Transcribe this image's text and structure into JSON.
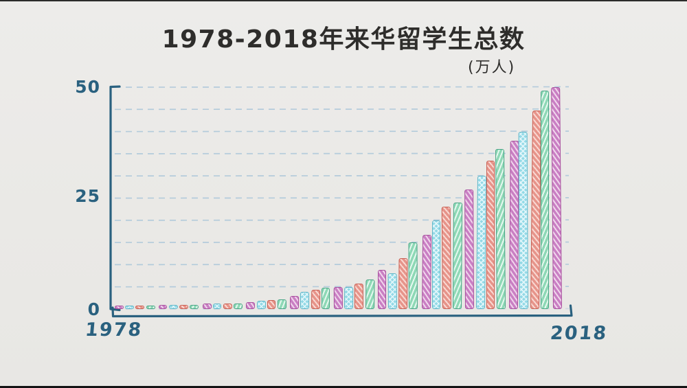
{
  "window": {
    "top_bar_color": "#2b2b2b",
    "bottom_bar_color": "#141414",
    "background": "#eae9e6"
  },
  "chart": {
    "title": "1978-2018年来华留学生总数",
    "unit_label": "(万人)",
    "title_color": "#2e2d2b",
    "y_axis_ticks": [
      "50",
      "25",
      "0"
    ],
    "x_axis_labels": {
      "start": "1978",
      "end": "2018"
    },
    "axis_color": "#2a617f",
    "gridline_color": "#aec8da"
  },
  "chart_data": {
    "type": "bar",
    "title": "1978-2018年来华留学生总数",
    "ylabel": "万人",
    "ylim": [
      0,
      50
    ],
    "y_tick_values": [
      0,
      25,
      50
    ],
    "y_gridline_step": 5,
    "grid": "dashed",
    "legend": "none",
    "x_range_labels": [
      "1978",
      "2018"
    ],
    "categories": [
      1978,
      1979,
      1980,
      1981,
      1982,
      1983,
      1984,
      1985,
      1986,
      1987,
      1988,
      1989,
      1990,
      1991,
      1992,
      1993,
      1994,
      1995,
      1996,
      1997,
      1998,
      1999,
      2000,
      2001,
      2002,
      2003,
      2004,
      2005,
      2006,
      2007,
      2008,
      2009,
      2010,
      2011,
      2012,
      2013,
      2014,
      2015,
      2016,
      2017,
      2018
    ],
    "values": [
      0.8,
      0.8,
      0.8,
      0.8,
      0.9,
      0.9,
      0.9,
      1.0,
      1.2,
      1.2,
      1.3,
      1.3,
      1.5,
      1.8,
      2.0,
      2.2,
      3.0,
      3.8,
      4.3,
      4.8,
      5.0,
      5.0,
      5.7,
      6.7,
      8.8,
      8.0,
      11.5,
      15.0,
      16.7,
      20.0,
      23.0,
      24.0,
      27.0,
      30.0,
      33.5,
      36.0,
      38.0,
      40.0,
      44.8,
      49.3,
      50.0
    ],
    "bar_color_cycle": [
      "purple",
      "cyan",
      "red",
      "green"
    ],
    "palette": {
      "purple": {
        "fill": "#c97fc3",
        "stripe": "#f0d5ec",
        "border": "#a8509e"
      },
      "cyan": {
        "fill": "#93d9e6",
        "stripe": "#e2f6fa",
        "border": "#5fb6c8"
      },
      "red": {
        "fill": "#e6948a",
        "stripe": "#f9d8d2",
        "border": "#c95f52"
      },
      "green": {
        "fill": "#8ed8b6",
        "stripe": "#e6f8ef",
        "border": "#48a585"
      }
    }
  }
}
